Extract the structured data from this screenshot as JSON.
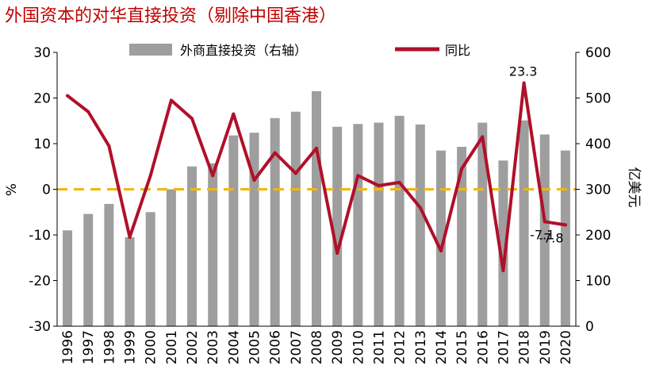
{
  "title": "外国资本的对华直接投资（剔除中国香港）",
  "chart_data": {
    "type": "bar+line",
    "categories": [
      "1996",
      "1997",
      "1998",
      "1999",
      "2000",
      "2001",
      "2002",
      "2003",
      "2004",
      "2005",
      "2006",
      "2007",
      "2008",
      "2009",
      "2010",
      "2011",
      "2012",
      "2013",
      "2014",
      "2015",
      "2016",
      "2017",
      "2018",
      "2019",
      "2020"
    ],
    "series": [
      {
        "name": "外商直接投资（右轴）",
        "type": "bar",
        "axis": "right",
        "color": "#9e9e9e",
        "values": [
          210,
          246,
          268,
          195,
          250,
          300,
          350,
          357,
          418,
          424,
          456,
          470,
          515,
          437,
          443,
          446,
          461,
          442,
          385,
          393,
          446,
          363,
          451,
          420,
          385
        ]
      },
      {
        "name": "同比",
        "type": "line",
        "axis": "left",
        "color": "#b0102a",
        "values": [
          20.5,
          17,
          9.5,
          -10.5,
          3,
          19.5,
          15.5,
          3,
          16.5,
          2,
          8,
          3.5,
          9,
          -14,
          3,
          0.8,
          1.5,
          -4,
          -13.5,
          4.5,
          11.5,
          -17.8,
          23.3,
          -7.1,
          -7.8
        ]
      }
    ],
    "data_labels": [
      {
        "category": "2018",
        "text": "23.3"
      },
      {
        "category": "2019",
        "text": "-7.1"
      },
      {
        "category": "2020",
        "text": "-7.8"
      }
    ],
    "ylabel_left": "%",
    "ylabel_right": "亿美元",
    "ylim_left": [
      -30,
      30
    ],
    "ylim_right": [
      0,
      600
    ],
    "yticks_left": [
      "-30",
      "-20",
      "-10",
      "0",
      "10",
      "20",
      "30"
    ],
    "yticks_right": [
      "0",
      "100",
      "200",
      "300",
      "400",
      "500",
      "600"
    ],
    "reference_line": {
      "value": 0,
      "axis": "left",
      "color": "#f2b705",
      "style": "dashed"
    },
    "legend_position": "top",
    "grid": false
  }
}
